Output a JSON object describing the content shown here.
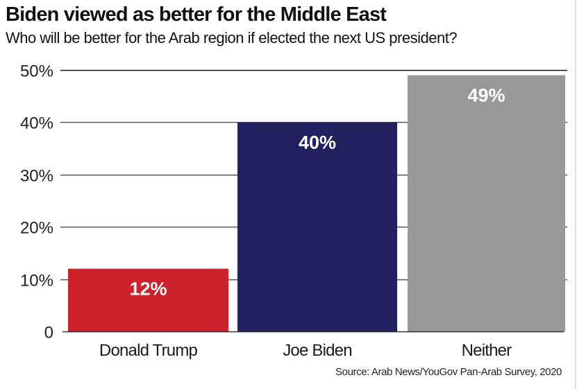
{
  "chart_data": {
    "type": "bar",
    "title": "Biden viewed as better for the Middle East",
    "subtitle": "Who will be better for the Arab region if elected the next US president?",
    "categories": [
      "Donald Trump",
      "Joe Biden",
      "Neither"
    ],
    "values": [
      12,
      40,
      49
    ],
    "data_labels": [
      "12%",
      "40%",
      "49%"
    ],
    "colors": [
      "#cc2229",
      "#22205f",
      "#999999"
    ],
    "xlabel": "",
    "ylabel": "",
    "ylim": [
      0,
      50
    ],
    "yticks": [
      0,
      10,
      20,
      30,
      40,
      50
    ],
    "ytick_labels": [
      "0",
      "10%",
      "20%",
      "30%",
      "40%",
      "50%"
    ],
    "grid": true,
    "legend": "none",
    "source": "Source: Arab News/YouGov Pan-Arab Survey, 2020"
  }
}
